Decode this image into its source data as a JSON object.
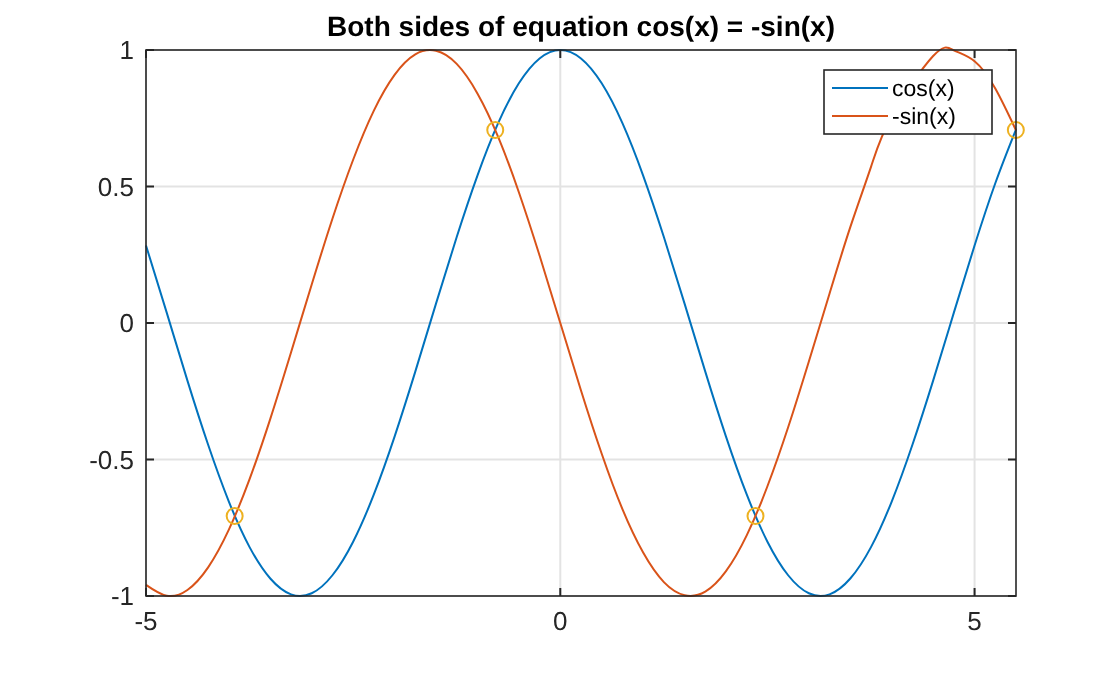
{
  "chart_data": {
    "type": "line",
    "title": "Both sides of equation cos(x) = -sin(x)",
    "x": [
      -5,
      -4.75,
      -4.5,
      -4.25,
      -4,
      -3.75,
      -3.5,
      -3.25,
      -3,
      -2.75,
      -2.5,
      -2.25,
      -2,
      -1.75,
      -1.5,
      -1.25,
      -1,
      -0.75,
      -0.5,
      -0.25,
      0,
      0.25,
      0.5,
      0.75,
      1,
      1.25,
      1.5,
      1.75,
      2,
      2.25,
      2.5,
      2.75,
      3,
      3.25,
      3.5,
      3.75,
      4,
      4.25,
      4.5,
      4.75,
      5,
      5.25,
      5.5
    ],
    "series": [
      {
        "name": "cos(x)",
        "color": "#0072bd",
        "values": [
          0.284,
          0.038,
          -0.211,
          -0.446,
          -0.654,
          -0.821,
          -0.936,
          -0.994,
          -0.99,
          -0.924,
          -0.801,
          -0.628,
          -0.416,
          -0.178,
          0.071,
          0.315,
          0.54,
          0.732,
          0.878,
          0.969,
          1,
          0.969,
          0.878,
          0.732,
          0.54,
          0.315,
          0.071,
          -0.178,
          -0.416,
          -0.628,
          -0.801,
          -0.924,
          -0.99,
          -0.994,
          -0.936,
          -0.821,
          -0.654,
          -0.446,
          -0.211,
          0.038,
          0.284,
          0.512,
          0.709
        ]
      },
      {
        "name": "-sin(x)",
        "color": "#d95319",
        "values": [
          -0.959,
          -0.999,
          -0.978,
          -0.895,
          -0.757,
          -0.572,
          -0.351,
          -0.108,
          0.141,
          0.382,
          0.598,
          0.778,
          0.909,
          0.984,
          0.997,
          0.949,
          0.841,
          0.682,
          0.479,
          0.247,
          0,
          -0.247,
          -0.479,
          -0.682,
          -0.841,
          -0.949,
          -0.997,
          -0.984,
          -0.909,
          -0.778,
          -0.598,
          -0.382,
          -0.141,
          0.108,
          0.351,
          0.572,
          0.757,
          null,
          0.978,
          0.999,
          0.959,
          0.859,
          0.706
        ]
      },
      {
        "type": "scatter",
        "marker": "circle",
        "color": "#edb120",
        "x": [
          -3.93,
          -0.785,
          2.356,
          5.498
        ],
        "values": [
          -0.707,
          0.707,
          -0.707,
          0.707
        ]
      }
    ],
    "xlim": [
      -5,
      5.5
    ],
    "xticks": [
      -5,
      0,
      5
    ],
    "ylim": [
      -1,
      1
    ],
    "yticks": [
      -1,
      -0.5,
      0,
      0.5,
      1
    ],
    "grid": true,
    "legend": "top right"
  }
}
